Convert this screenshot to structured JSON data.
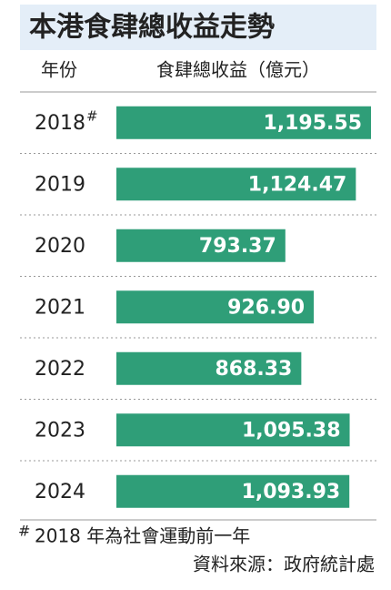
{
  "chart_data": {
    "type": "bar",
    "orientation": "horizontal",
    "title": "本港食肆總收益走勢",
    "category_label": "年份",
    "value_label": "食肆總收益（億元）",
    "categories": [
      "2018",
      "2019",
      "2020",
      "2021",
      "2022",
      "2023",
      "2024"
    ],
    "category_markers": [
      "#",
      null,
      null,
      null,
      null,
      null,
      null
    ],
    "values": [
      1195.55,
      1124.47,
      793.37,
      926.9,
      868.33,
      1095.38,
      1093.93
    ],
    "value_labels": [
      "1,195.55",
      "1,124.47",
      "793.37",
      "926.90",
      "868.33",
      "1,095.38",
      "1,093.93"
    ],
    "color": "#2f9e78",
    "footnote": {
      "marker": "#",
      "text": "2018 年為社會運動前一年"
    },
    "source": "資料來源：政府統計處"
  }
}
